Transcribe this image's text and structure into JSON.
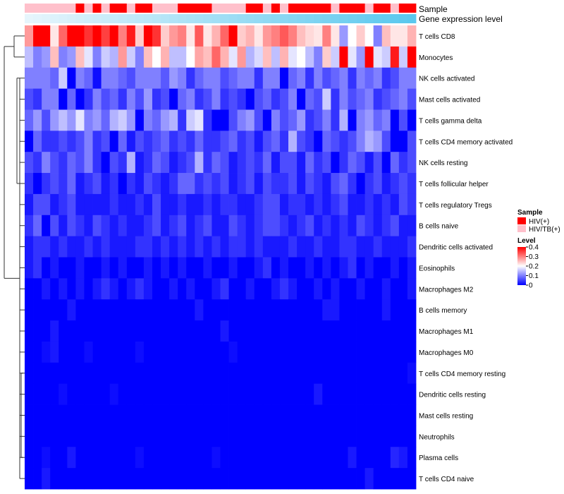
{
  "chart_data": {
    "type": "heatmap",
    "annotation_tracks": [
      {
        "name": "Sample"
      },
      {
        "name": "Gene expression level"
      }
    ],
    "row_labels": [
      "T cells CD8",
      "Monocytes",
      "NK cells activated",
      "Mast cells activated",
      "T cells gamma delta",
      "T cells CD4 memory activated",
      "NK cells resting",
      "T cells follicular helper",
      "T cells regulatory  Tregs",
      "B cells naive",
      "Dendritic cells activated",
      "Eosinophils",
      "Macrophages M2",
      "B cells memory",
      "Macrophages M1",
      "Macrophages M0",
      "T cells CD4 memory resting",
      "Dendritic cells resting",
      "Mast cells resting",
      "Neutrophils",
      "Plasma cells",
      "T cells CD4 naive"
    ],
    "num_columns": 46,
    "sample_groups": [
      "HIV/TB(+)",
      "HIV/TB(+)",
      "HIV/TB(+)",
      "HIV/TB(+)",
      "HIV/TB(+)",
      "HIV/TB(+)",
      "HIV(+)",
      "HIV/TB(+)",
      "HIV(+)",
      "HIV/TB(+)",
      "HIV(+)",
      "HIV(+)",
      "HIV/TB(+)",
      "HIV(+)",
      "HIV(+)",
      "HIV/TB(+)",
      "HIV/TB(+)",
      "HIV/TB(+)",
      "HIV(+)",
      "HIV(+)",
      "HIV(+)",
      "HIV(+)",
      "HIV/TB(+)",
      "HIV/TB(+)",
      "HIV/TB(+)",
      "HIV/TB(+)",
      "HIV(+)",
      "HIV(+)",
      "HIV/TB(+)",
      "HIV(+)",
      "HIV/TB(+)",
      "HIV(+)",
      "HIV(+)",
      "HIV(+)",
      "HIV(+)",
      "HIV(+)",
      "HIV/TB(+)",
      "HIV(+)",
      "HIV(+)",
      "HIV(+)",
      "HIV/TB(+)",
      "HIV(+)",
      "HIV(+)",
      "HIV/TB(+)",
      "HIV(+)",
      "HIV(+)"
    ],
    "sample_colors": {
      "HIV(+)": "#ff0000",
      "HIV/TB(+)": "#ffc0cb"
    },
    "expression_gradient": {
      "from": "#e6f5fc",
      "to": "#5bc8ee"
    },
    "values": [
      [
        0.28,
        0.4,
        0.4,
        0.22,
        0.32,
        0.4,
        0.4,
        0.36,
        0.4,
        0.35,
        0.4,
        0.3,
        0.38,
        0.24,
        0.4,
        0.36,
        0.24,
        0.28,
        0.3,
        0.22,
        0.33,
        0.22,
        0.26,
        0.32,
        0.4,
        0.24,
        0.26,
        0.22,
        0.28,
        0.3,
        0.33,
        0.3,
        0.25,
        0.23,
        0.22,
        0.3,
        0.22,
        0.12,
        0.2,
        0.24,
        0.2,
        0.1,
        0.25,
        0.22,
        0.22,
        0.26
      ],
      [
        0.15,
        0.1,
        0.12,
        0.25,
        0.1,
        0.12,
        0.25,
        0.18,
        0.1,
        0.16,
        0.14,
        0.28,
        0.16,
        0.1,
        0.25,
        0.2,
        0.26,
        0.15,
        0.15,
        0.2,
        0.27,
        0.25,
        0.32,
        0.26,
        0.18,
        0.28,
        0.14,
        0.17,
        0.25,
        0.15,
        0.26,
        0.18,
        0.2,
        0.15,
        0.1,
        0.24,
        0.16,
        0.4,
        0.18,
        0.12,
        0.4,
        0.18,
        0.16,
        0.38,
        0.16,
        0.4
      ],
      [
        0.1,
        0.1,
        0.1,
        0.08,
        0.16,
        0.0,
        0.1,
        0.08,
        0.01,
        0.1,
        0.1,
        0.08,
        0.06,
        0.1,
        0.1,
        0.1,
        0.07,
        0.12,
        0.1,
        0.04,
        0.08,
        0.1,
        0.1,
        0.06,
        0.08,
        0.1,
        0.1,
        0.04,
        0.1,
        0.1,
        0.0,
        0.08,
        0.1,
        0.04,
        0.1,
        0.06,
        0.08,
        0.1,
        0.04,
        0.1,
        0.08,
        0.1,
        0.04,
        0.06,
        0.1,
        0.1
      ],
      [
        0.06,
        0.04,
        0.1,
        0.1,
        0.0,
        0.08,
        0.0,
        0.04,
        0.1,
        0.06,
        0.08,
        0.04,
        0.1,
        0.06,
        0.12,
        0.04,
        0.06,
        0.0,
        0.08,
        0.1,
        0.04,
        0.06,
        0.1,
        0.04,
        0.06,
        0.04,
        0.0,
        0.06,
        0.08,
        0.04,
        0.06,
        0.1,
        0.0,
        0.08,
        0.06,
        0.16,
        0.04,
        0.1,
        0.06,
        0.08,
        0.1,
        0.04,
        0.06,
        0.08,
        0.1,
        0.06
      ],
      [
        0.08,
        0.12,
        0.06,
        0.12,
        0.15,
        0.12,
        0.18,
        0.1,
        0.12,
        0.08,
        0.14,
        0.16,
        0.12,
        0.0,
        0.1,
        0.08,
        0.12,
        0.14,
        0.04,
        0.16,
        0.18,
        0.04,
        0.0,
        0.0,
        0.06,
        0.1,
        0.12,
        0.06,
        0.0,
        0.1,
        0.06,
        0.08,
        0.12,
        0.04,
        0.06,
        0.1,
        0.04,
        0.14,
        0.0,
        0.1,
        0.12,
        0.08,
        0.1,
        0.0,
        0.06,
        0.0
      ],
      [
        0.0,
        0.08,
        0.04,
        0.04,
        0.06,
        0.04,
        0.06,
        0.1,
        0.04,
        0.06,
        0.0,
        0.08,
        0.02,
        0.06,
        0.04,
        0.06,
        0.08,
        0.04,
        0.06,
        0.04,
        0.08,
        0.04,
        0.04,
        0.06,
        0.08,
        0.04,
        0.06,
        0.02,
        0.06,
        0.08,
        0.04,
        0.14,
        0.06,
        0.04,
        0.0,
        0.08,
        0.06,
        0.04,
        0.06,
        0.1,
        0.14,
        0.12,
        0.06,
        0.0,
        0.0,
        0.06
      ],
      [
        0.06,
        0.04,
        0.1,
        0.06,
        0.04,
        0.08,
        0.06,
        0.1,
        0.04,
        0.0,
        0.06,
        0.04,
        0.14,
        0.02,
        0.04,
        0.08,
        0.06,
        0.02,
        0.04,
        0.06,
        0.14,
        0.04,
        0.08,
        0.06,
        0.02,
        0.04,
        0.06,
        0.04,
        0.08,
        0.02,
        0.06,
        0.06,
        0.02,
        0.08,
        0.04,
        0.06,
        0.0,
        0.04,
        0.08,
        0.06,
        0.02,
        0.06,
        0.0,
        0.08,
        0.04,
        0.06
      ],
      [
        0.04,
        0.0,
        0.04,
        0.06,
        0.04,
        0.08,
        0.02,
        0.04,
        0.06,
        0.02,
        0.04,
        0.0,
        0.04,
        0.02,
        0.06,
        0.04,
        0.02,
        0.04,
        0.08,
        0.08,
        0.04,
        0.06,
        0.04,
        0.06,
        0.02,
        0.04,
        0.06,
        0.02,
        0.06,
        0.04,
        0.04,
        0.06,
        0.02,
        0.06,
        0.04,
        0.02,
        0.06,
        0.08,
        0.04,
        0.0,
        0.04,
        0.06,
        0.02,
        0.04,
        0.06,
        0.04
      ],
      [
        0.02,
        0.06,
        0.06,
        0.02,
        0.04,
        0.06,
        0.02,
        0.02,
        0.02,
        0.02,
        0.04,
        0.02,
        0.02,
        0.04,
        0.02,
        0.06,
        0.02,
        0.02,
        0.04,
        0.02,
        0.02,
        0.04,
        0.02,
        0.04,
        0.04,
        0.02,
        0.02,
        0.04,
        0.06,
        0.06,
        0.02,
        0.04,
        0.04,
        0.02,
        0.04,
        0.02,
        0.04,
        0.06,
        0.02,
        0.02,
        0.04,
        0.02,
        0.04,
        0.02,
        0.06,
        0.04
      ],
      [
        0.04,
        0.08,
        0.0,
        0.06,
        0.02,
        0.06,
        0.04,
        0.02,
        0.06,
        0.04,
        0.02,
        0.04,
        0.02,
        0.02,
        0.04,
        0.06,
        0.02,
        0.04,
        0.06,
        0.02,
        0.04,
        0.06,
        0.02,
        0.02,
        0.06,
        0.04,
        0.02,
        0.04,
        0.06,
        0.06,
        0.04,
        0.02,
        0.04,
        0.06,
        0.02,
        0.04,
        0.02,
        0.04,
        0.02,
        0.06,
        0.04,
        0.02,
        0.04,
        0.06,
        0.02,
        0.02
      ],
      [
        0.02,
        0.04,
        0.04,
        0.02,
        0.04,
        0.02,
        0.02,
        0.04,
        0.02,
        0.04,
        0.02,
        0.02,
        0.02,
        0.04,
        0.04,
        0.02,
        0.04,
        0.02,
        0.04,
        0.02,
        0.04,
        0.02,
        0.04,
        0.02,
        0.04,
        0.04,
        0.02,
        0.04,
        0.02,
        0.02,
        0.02,
        0.04,
        0.02,
        0.02,
        0.04,
        0.02,
        0.02,
        0.04,
        0.04,
        0.02,
        0.02,
        0.04,
        0.02,
        0.02,
        0.02,
        0.04
      ],
      [
        0.02,
        0.04,
        0.0,
        0.02,
        0.0,
        0.0,
        0.02,
        0.0,
        0.0,
        0.02,
        0.0,
        0.02,
        0.0,
        0.0,
        0.02,
        0.0,
        0.02,
        0.0,
        0.02,
        0.0,
        0.0,
        0.02,
        0.0,
        0.0,
        0.02,
        0.0,
        0.0,
        0.02,
        0.04,
        0.0,
        0.02,
        0.0,
        0.0,
        0.02,
        0.0,
        0.02,
        0.0,
        0.02,
        0.04,
        0.0,
        0.02,
        0.0,
        0.0,
        0.02,
        0.0,
        0.02
      ],
      [
        0.0,
        0.0,
        0.02,
        0.0,
        0.02,
        0.0,
        0.02,
        0.0,
        0.02,
        0.04,
        0.02,
        0.0,
        0.02,
        0.04,
        0.02,
        0.0,
        0.0,
        0.02,
        0.0,
        0.02,
        0.0,
        0.0,
        0.02,
        0.04,
        0.0,
        0.0,
        0.02,
        0.0,
        0.0,
        0.02,
        0.04,
        0.02,
        0.0,
        0.0,
        0.02,
        0.0,
        0.02,
        0.0,
        0.0,
        0.02,
        0.0,
        0.0,
        0.02,
        0.0,
        0.0,
        0.02
      ],
      [
        0.0,
        0.0,
        0.0,
        0.0,
        0.0,
        0.02,
        0.0,
        0.0,
        0.0,
        0.0,
        0.0,
        0.0,
        0.0,
        0.0,
        0.0,
        0.0,
        0.0,
        0.0,
        0.0,
        0.0,
        0.02,
        0.0,
        0.0,
        0.0,
        0.0,
        0.0,
        0.0,
        0.0,
        0.0,
        0.0,
        0.0,
        0.0,
        0.0,
        0.0,
        0.0,
        0.02,
        0.02,
        0.0,
        0.0,
        0.0,
        0.0,
        0.0,
        0.02,
        0.0,
        0.0,
        0.0
      ],
      [
        0.0,
        0.0,
        0.0,
        0.02,
        0.0,
        0.0,
        0.0,
        0.0,
        0.0,
        0.0,
        0.0,
        0.0,
        0.0,
        0.0,
        0.0,
        0.0,
        0.0,
        0.0,
        0.0,
        0.0,
        0.0,
        0.0,
        0.0,
        0.02,
        0.0,
        0.0,
        0.0,
        0.0,
        0.0,
        0.0,
        0.0,
        0.0,
        0.0,
        0.0,
        0.0,
        0.0,
        0.0,
        0.0,
        0.0,
        0.0,
        0.0,
        0.0,
        0.0,
        0.0,
        0.0,
        0.0
      ],
      [
        0.0,
        0.0,
        0.01,
        0.02,
        0.0,
        0.0,
        0.0,
        0.01,
        0.0,
        0.0,
        0.0,
        0.0,
        0.0,
        0.01,
        0.0,
        0.0,
        0.0,
        0.0,
        0.0,
        0.0,
        0.0,
        0.0,
        0.0,
        0.0,
        0.01,
        0.0,
        0.0,
        0.0,
        0.0,
        0.0,
        0.0,
        0.0,
        0.0,
        0.0,
        0.0,
        0.0,
        0.0,
        0.0,
        0.0,
        0.0,
        0.0,
        0.0,
        0.0,
        0.0,
        0.0,
        0.0
      ],
      [
        0.0,
        0.0,
        0.0,
        0.0,
        0.0,
        0.0,
        0.0,
        0.0,
        0.0,
        0.0,
        0.0,
        0.0,
        0.0,
        0.0,
        0.0,
        0.0,
        0.0,
        0.0,
        0.0,
        0.0,
        0.0,
        0.0,
        0.0,
        0.0,
        0.0,
        0.0,
        0.0,
        0.0,
        0.0,
        0.0,
        0.0,
        0.0,
        0.0,
        0.0,
        0.0,
        0.0,
        0.0,
        0.0,
        0.0,
        0.0,
        0.0,
        0.0,
        0.0,
        0.0,
        0.0,
        0.01
      ],
      [
        0.0,
        0.0,
        0.0,
        0.0,
        0.01,
        0.0,
        0.0,
        0.0,
        0.0,
        0.0,
        0.01,
        0.0,
        0.0,
        0.0,
        0.0,
        0.0,
        0.0,
        0.0,
        0.0,
        0.0,
        0.0,
        0.0,
        0.0,
        0.0,
        0.0,
        0.0,
        0.0,
        0.0,
        0.0,
        0.0,
        0.0,
        0.0,
        0.0,
        0.0,
        0.02,
        0.0,
        0.0,
        0.0,
        0.0,
        0.0,
        0.0,
        0.0,
        0.0,
        0.0,
        0.0,
        0.0
      ],
      [
        0.0,
        0.0,
        0.0,
        0.0,
        0.0,
        0.0,
        0.0,
        0.0,
        0.0,
        0.0,
        0.0,
        0.0,
        0.0,
        0.0,
        0.0,
        0.0,
        0.0,
        0.0,
        0.0,
        0.0,
        0.0,
        0.0,
        0.0,
        0.0,
        0.0,
        0.0,
        0.0,
        0.0,
        0.0,
        0.0,
        0.0,
        0.0,
        0.0,
        0.0,
        0.0,
        0.0,
        0.0,
        0.0,
        0.0,
        0.0,
        0.0,
        0.0,
        0.0,
        0.0,
        0.0,
        0.0
      ],
      [
        0.0,
        0.0,
        0.0,
        0.0,
        0.0,
        0.0,
        0.0,
        0.0,
        0.0,
        0.0,
        0.0,
        0.0,
        0.0,
        0.0,
        0.0,
        0.0,
        0.0,
        0.0,
        0.0,
        0.0,
        0.0,
        0.0,
        0.0,
        0.0,
        0.0,
        0.0,
        0.0,
        0.0,
        0.0,
        0.0,
        0.0,
        0.0,
        0.0,
        0.0,
        0.0,
        0.0,
        0.0,
        0.0,
        0.0,
        0.0,
        0.0,
        0.0,
        0.0,
        0.0,
        0.0,
        0.0
      ],
      [
        0.0,
        0.0,
        0.01,
        0.0,
        0.0,
        0.02,
        0.0,
        0.0,
        0.0,
        0.0,
        0.0,
        0.0,
        0.0,
        0.01,
        0.0,
        0.0,
        0.0,
        0.0,
        0.0,
        0.0,
        0.0,
        0.0,
        0.01,
        0.0,
        0.0,
        0.0,
        0.0,
        0.0,
        0.0,
        0.0,
        0.0,
        0.0,
        0.0,
        0.0,
        0.0,
        0.0,
        0.0,
        0.0,
        0.02,
        0.0,
        0.0,
        0.0,
        0.0,
        0.03,
        0.02,
        0.0
      ],
      [
        0.0,
        0.0,
        0.02,
        0.0,
        0.0,
        0.0,
        0.0,
        0.0,
        0.0,
        0.0,
        0.0,
        0.0,
        0.0,
        0.0,
        0.0,
        0.0,
        0.0,
        0.0,
        0.0,
        0.0,
        0.0,
        0.0,
        0.0,
        0.0,
        0.0,
        0.0,
        0.0,
        0.0,
        0.0,
        0.0,
        0.0,
        0.0,
        0.0,
        0.0,
        0.0,
        0.0,
        0.0,
        0.0,
        0.0,
        0.0,
        0.02,
        0.0,
        0.0,
        0.0,
        0.0,
        0.0
      ]
    ],
    "legend": {
      "sample_title": "Sample",
      "sample_entries": [
        "HIV(+)",
        "HIV/TB(+)"
      ],
      "level_title": "Level",
      "level_ticks": [
        "0.4",
        "0.3",
        "0.2",
        "0.1",
        "0"
      ],
      "level_tick_values": [
        0.4,
        0.3,
        0.2,
        0.1,
        0
      ],
      "placement": "right"
    },
    "color_scale": {
      "low": "#0000ff",
      "mid": "#ffffff",
      "high": "#ff0000",
      "min": 0,
      "mid_value": 0.2,
      "max": 0.4
    },
    "dendrogram": "rows"
  }
}
